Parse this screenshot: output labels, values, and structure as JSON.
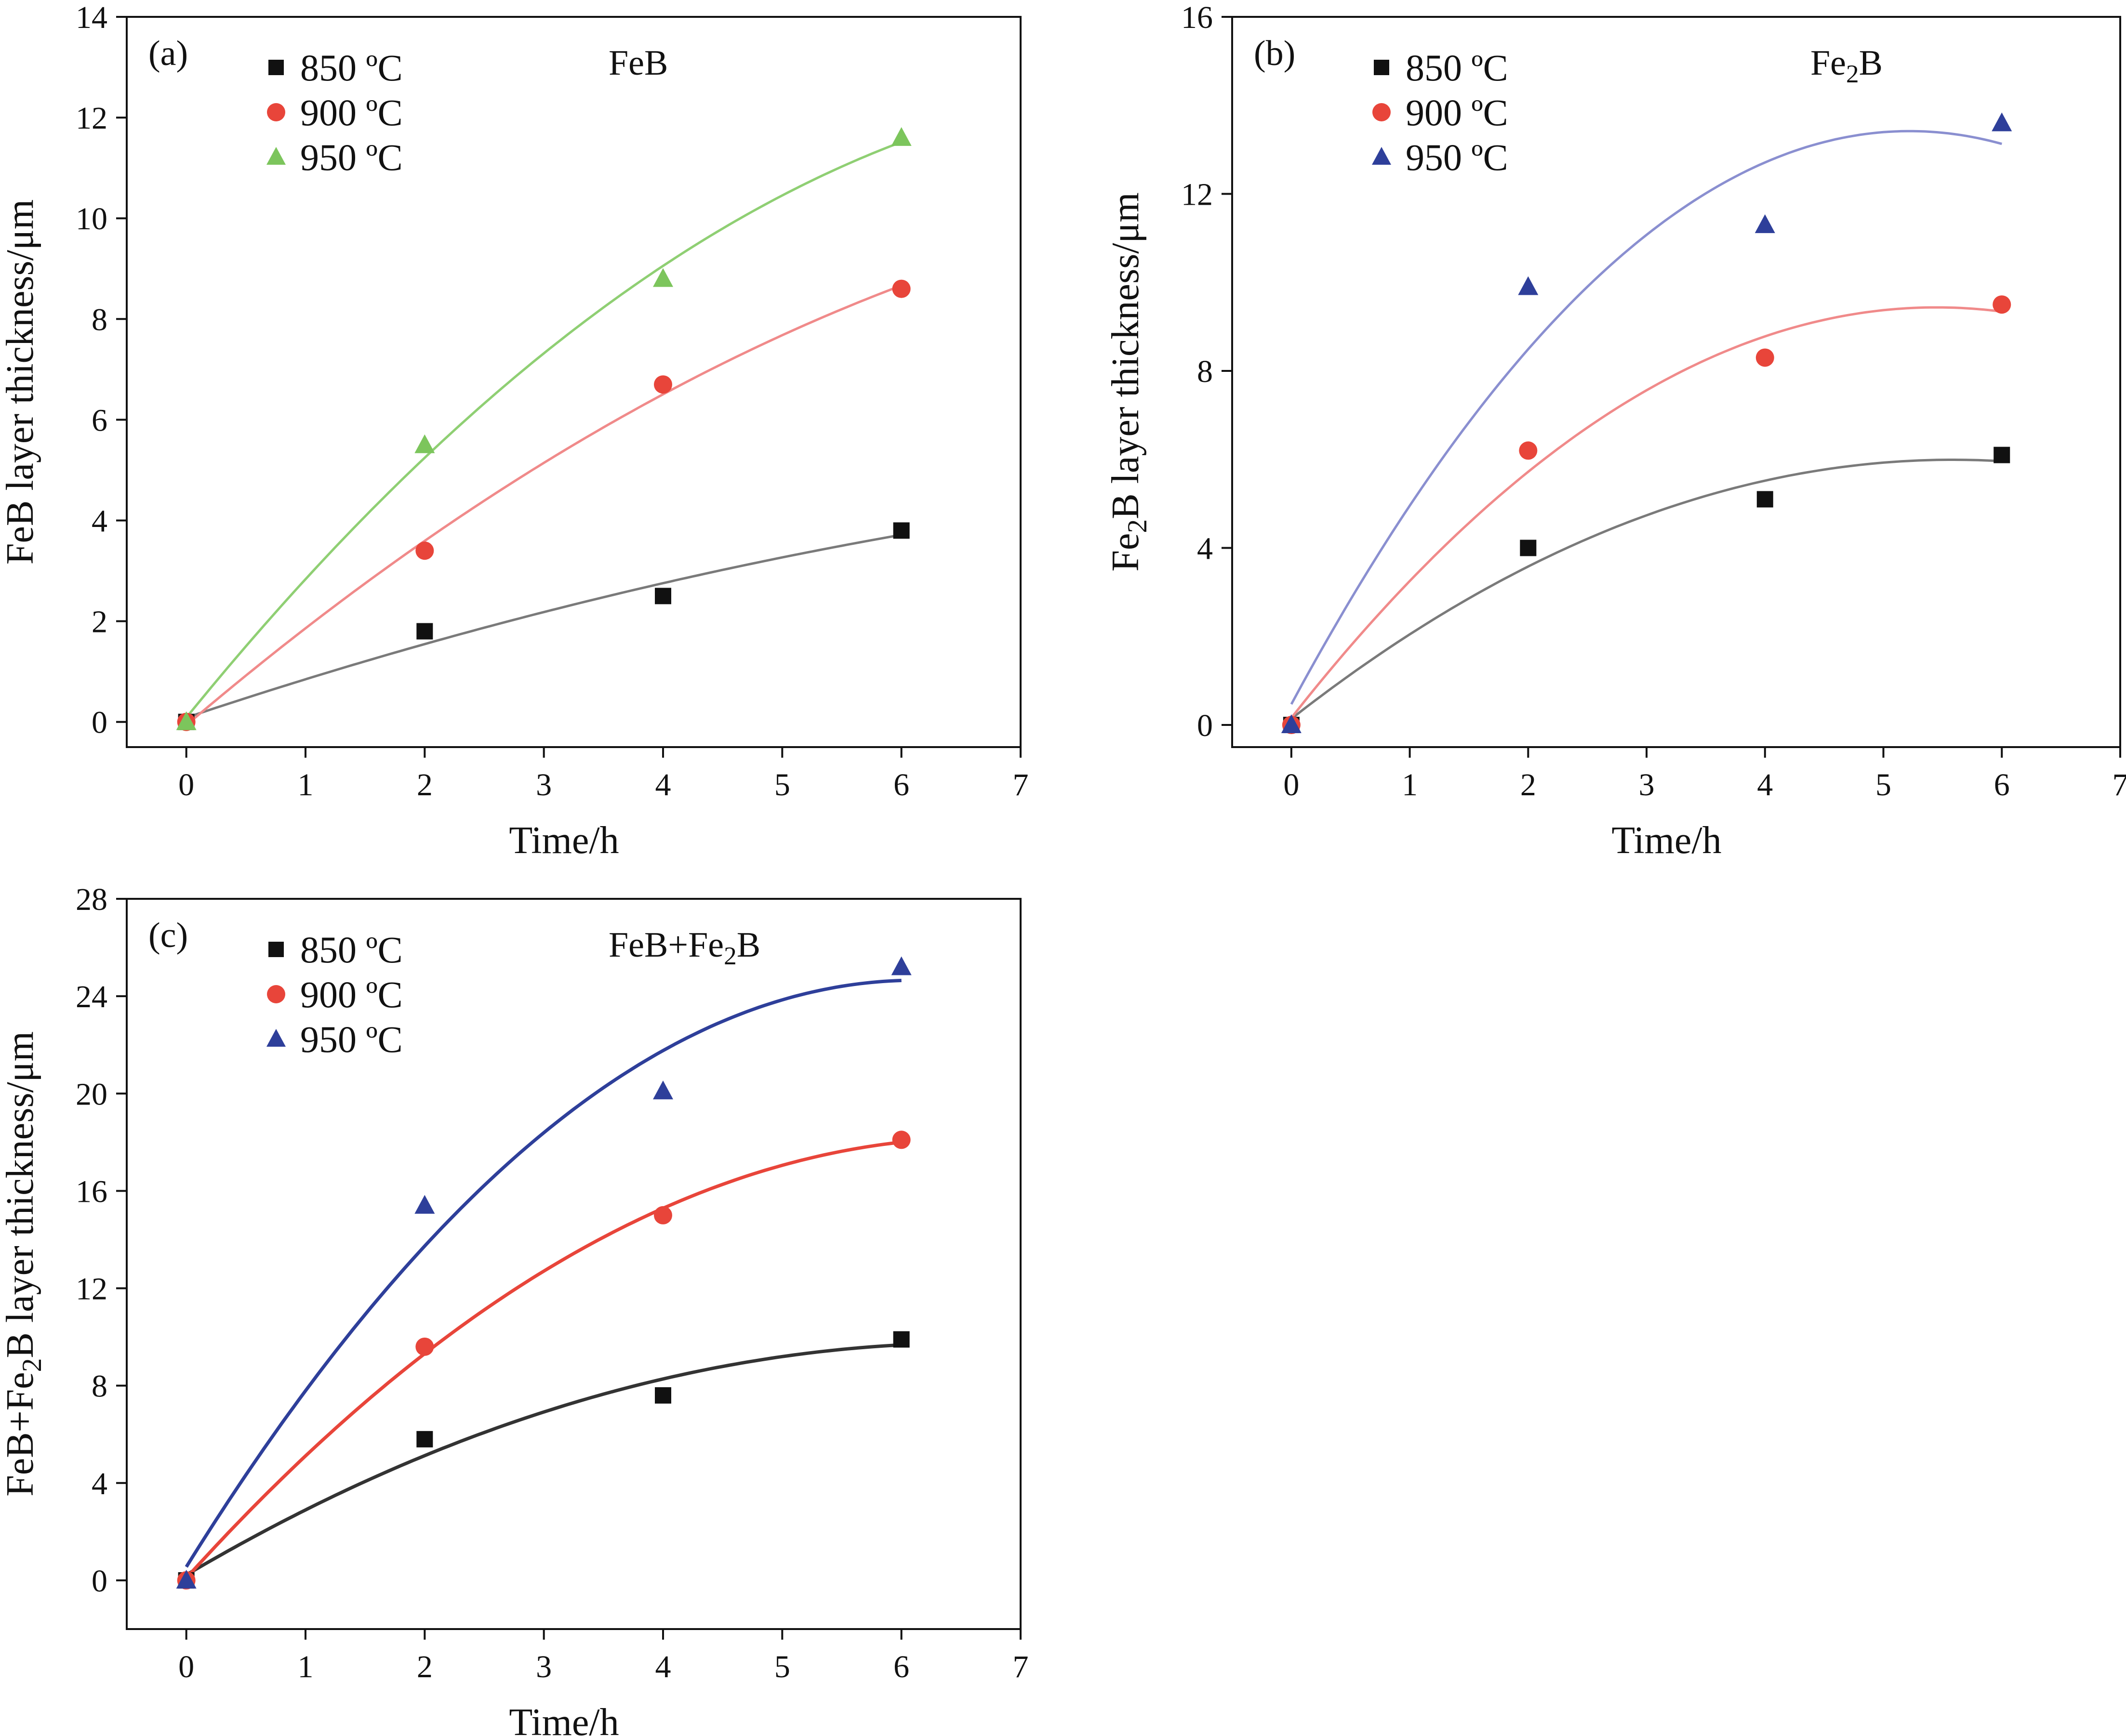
{
  "chart_data": [
    {
      "type": "scatter",
      "panel_label": "(a)",
      "title_parts": [
        {
          "text": "FeB"
        }
      ],
      "xlabel": "Time/h",
      "ylabel_parts": [
        {
          "text": "FeB layer thickness/μm"
        }
      ],
      "xlim": [
        -0.5,
        7
      ],
      "ylim": [
        -0.5,
        14
      ],
      "xticks": [
        0,
        1,
        2,
        3,
        4,
        5,
        6,
        7
      ],
      "yticks": [
        0,
        2,
        4,
        6,
        8,
        10,
        12,
        14
      ],
      "x": [
        0,
        2,
        4,
        6
      ],
      "fit": "quadratic",
      "legend_position": "top-left",
      "series": [
        {
          "name": "850 ºC",
          "marker": "square",
          "color": "#111111",
          "line_color": "#7a7a7a",
          "values": [
            0,
            1.8,
            2.5,
            3.8
          ]
        },
        {
          "name": "900 ºC",
          "marker": "circle",
          "color": "#e8453a",
          "line_color": "#f08a8a",
          "values": [
            0,
            3.4,
            6.7,
            8.6
          ]
        },
        {
          "name": "950 ºC",
          "marker": "triangle",
          "color": "#7cc55c",
          "line_color": "#8fcf73",
          "values": [
            0,
            5.5,
            8.8,
            11.6
          ]
        }
      ]
    },
    {
      "type": "scatter",
      "panel_label": "(b)",
      "title_parts": [
        {
          "text": "Fe"
        },
        {
          "text": "2",
          "sub": true
        },
        {
          "text": "B"
        }
      ],
      "xlabel": "Time/h",
      "ylabel_parts": [
        {
          "text": "Fe"
        },
        {
          "text": "2",
          "sub": true
        },
        {
          "text": "B layer thickness/μm"
        }
      ],
      "xlim": [
        -0.5,
        7
      ],
      "ylim": [
        -0.5,
        16
      ],
      "xticks": [
        0,
        1,
        2,
        3,
        4,
        5,
        6,
        7
      ],
      "yticks": [
        0,
        4,
        8,
        12,
        16
      ],
      "x": [
        0,
        2,
        4,
        6
      ],
      "fit": "quadratic",
      "legend_position": "top-left",
      "series": [
        {
          "name": "850 ºC",
          "marker": "square",
          "color": "#111111",
          "line_color": "#7a7a7a",
          "values": [
            0,
            4.0,
            5.1,
            6.1
          ]
        },
        {
          "name": "900 ºC",
          "marker": "circle",
          "color": "#e8453a",
          "line_color": "#f08a8a",
          "values": [
            0,
            6.2,
            8.3,
            9.5
          ]
        },
        {
          "name": "950 ºC",
          "marker": "triangle",
          "color": "#2e3f9a",
          "line_color": "#8a8fd0",
          "values": [
            0,
            9.9,
            11.3,
            13.6
          ]
        }
      ]
    },
    {
      "type": "scatter",
      "panel_label": "(c)",
      "title_parts": [
        {
          "text": "FeB+Fe"
        },
        {
          "text": "2",
          "sub": true
        },
        {
          "text": "B"
        }
      ],
      "xlabel": "Time/h",
      "ylabel_parts": [
        {
          "text": "FeB+Fe"
        },
        {
          "text": "2",
          "sub": true
        },
        {
          "text": "B layer thickness/μm"
        }
      ],
      "xlim": [
        -0.5,
        7
      ],
      "ylim": [
        -2,
        28
      ],
      "xticks": [
        0,
        1,
        2,
        3,
        4,
        5,
        6,
        7
      ],
      "yticks": [
        0,
        4,
        8,
        12,
        16,
        20,
        24,
        28
      ],
      "x": [
        0,
        2,
        4,
        6
      ],
      "fit": "quadratic",
      "legend_position": "top-left",
      "series": [
        {
          "name": "850 ºC",
          "marker": "square",
          "color": "#111111",
          "line_color": "#333333",
          "values": [
            0,
            5.8,
            7.6,
            9.9
          ]
        },
        {
          "name": "900 ºC",
          "marker": "circle",
          "color": "#e8453a",
          "line_color": "#e8453a",
          "values": [
            0,
            9.6,
            15.0,
            18.1
          ]
        },
        {
          "name": "950 ºC",
          "marker": "triangle",
          "color": "#2e3f9a",
          "line_color": "#2e3f9a",
          "values": [
            0,
            15.4,
            20.1,
            25.2
          ]
        }
      ]
    }
  ]
}
